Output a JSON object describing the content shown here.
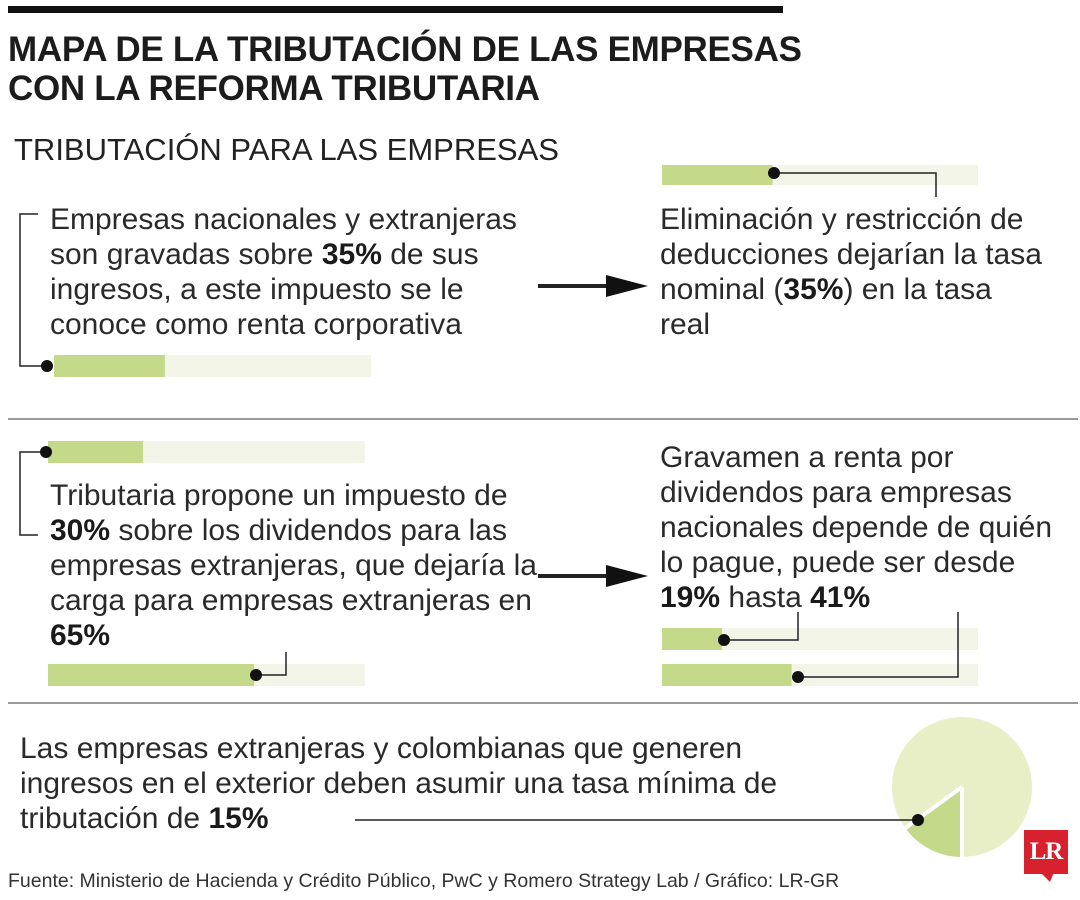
{
  "header": {
    "title": "MAPA DE LA TRIBUTACIÓN DE LAS EMPRESAS CON LA REFORMA TRIBUTARIA",
    "subtitle": "TRIBUTACIÓN PARA LAS EMPRESAS"
  },
  "blocks": [
    {
      "pre": "Empresas nacionales y extranjeras son gravadas sobre ",
      "bold": "35%",
      "post": " de sus ingresos, a este impuesto se le conoce como renta corporativa",
      "bar_value": 0.35
    },
    {
      "pre": "Eliminación y restricción de deducciones dejarían la tasa nominal (",
      "bold": "35%",
      "post": ") en la tasa real",
      "bar_value": 0.35
    },
    {
      "pre": "Tributaria propone un impuesto de ",
      "bold": "30%",
      "post": " sobre los dividendos para las empresas extranjeras, que dejaría la carga para empresas extranjeras en ",
      "bold2": "65%",
      "bar_values": [
        0.3,
        0.65
      ]
    },
    {
      "pre": "Gravamen a renta por dividendos para empresas nacionales depende de quién lo pague, puede ser desde ",
      "bold": "19%",
      "mid": " hasta ",
      "bold2": "41%",
      "bar_values": [
        0.19,
        0.41
      ]
    },
    {
      "pre": "Las empresas extranjeras y colombianas que generen ingresos en el exterior deben asumir una tasa mínima de tributación de ",
      "bold": "15%",
      "pie_value": 0.15
    }
  ],
  "footer": {
    "source": "Fuente: Ministerio de Hacienda y Crédito Público, PwC y Romero Strategy Lab / Gráfico: LR-GR",
    "logo": "LR"
  },
  "colors": {
    "bar_fill": "#c4d98a",
    "bar_track": "#f3f5e8",
    "pie_bg": "#e8efc6",
    "pie_fill": "#c4d98a",
    "logo": "#d7212e"
  }
}
